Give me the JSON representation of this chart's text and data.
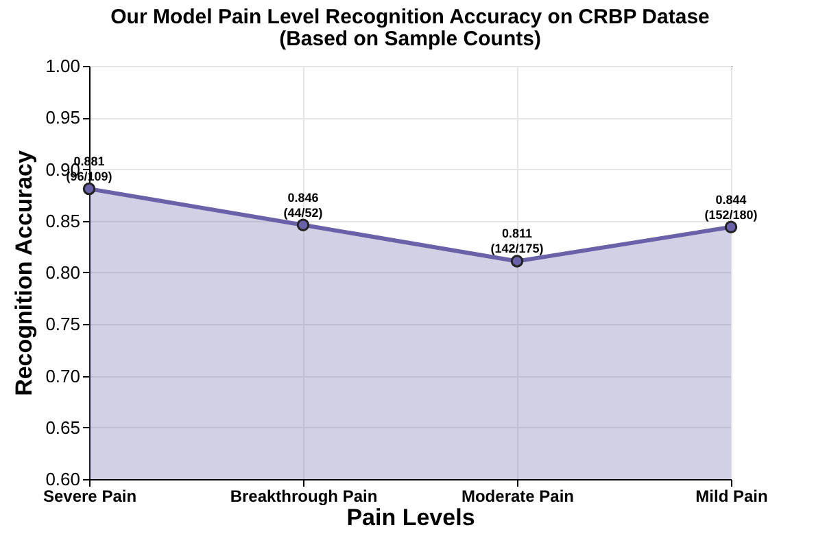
{
  "chart_data": {
    "type": "area",
    "title": "Our Model Pain Level Recognition Accuracy on CRBP Datase\n(Based on Sample Counts)",
    "xlabel": "Pain Levels",
    "ylabel": "Recognition Accuracy",
    "categories": [
      "Severe Pain",
      "Breakthrough Pain",
      "Moderate Pain",
      "Mild Pain"
    ],
    "series": [
      {
        "color": "#6a62a8",
        "values": [
          0.881,
          0.846,
          0.811,
          0.844
        ],
        "value_labels": [
          "0.881\n(96/109)",
          "0.846\n(44/52)",
          "0.811\n(142/175)",
          "0.844\n(152/180)"
        ]
      }
    ],
    "ylim": [
      0.6,
      1.0
    ],
    "yticks": [
      {
        "value": 0.6,
        "label": "0.60"
      },
      {
        "value": 0.65,
        "label": "0.65"
      },
      {
        "value": 0.7,
        "label": "0.70"
      },
      {
        "value": 0.75,
        "label": "0.75"
      },
      {
        "value": 0.8,
        "label": "0.80"
      },
      {
        "value": 0.85,
        "label": "0.85"
      },
      {
        "value": 0.9,
        "label": "0.90"
      },
      {
        "value": 0.95,
        "label": "0.95"
      },
      {
        "value": 1.0,
        "label": "1.00"
      }
    ],
    "grid": true,
    "marker": "circle",
    "line_style": "solid"
  }
}
